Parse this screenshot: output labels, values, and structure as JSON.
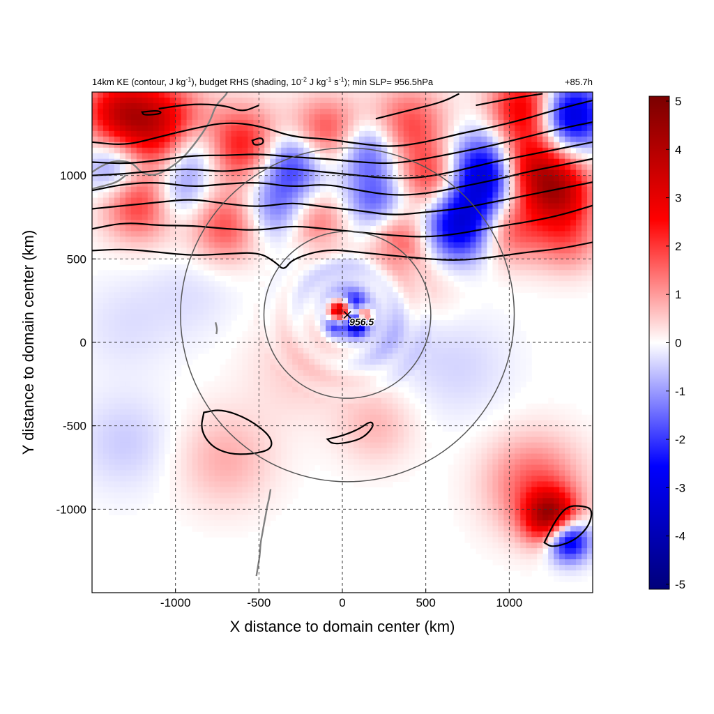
{
  "chart_data": {
    "type": "heatmap",
    "title_left_parts": [
      {
        "t": "14km KE (contour, J kg"
      },
      {
        "t": "-1",
        "sup": true
      },
      {
        "t": "), budget RHS (shading, 10"
      },
      {
        "t": "-2",
        "sup": true
      },
      {
        "t": " J kg"
      },
      {
        "t": "-1",
        "sup": true
      },
      {
        "t": " s"
      },
      {
        "t": "-1",
        "sup": true
      },
      {
        "t": "); min SLP= 956.5hPa"
      }
    ],
    "title_right": "+85.7h",
    "xlabel": "X distance to domain center (km)",
    "ylabel": "Y distance to domain center (km)",
    "xlim": [
      -1500,
      1500
    ],
    "ylim": [
      -1500,
      1500
    ],
    "xticks": [
      -1000,
      -500,
      0,
      500,
      1000
    ],
    "yticks": [
      -1000,
      -500,
      0,
      500,
      1000
    ],
    "xtick_labels": [
      "-1000",
      "-500",
      "0",
      "500",
      "1000"
    ],
    "ytick_labels": [
      "-1000",
      "-500",
      "0",
      "500",
      "1000"
    ],
    "grid": "dashed",
    "colorbar": {
      "min": -5,
      "max": 5,
      "ticks": [
        5,
        4,
        3,
        2,
        1,
        0,
        -1,
        -2,
        -3,
        -4,
        -5
      ],
      "tick_labels": [
        "5",
        "4",
        "3",
        "2",
        "1",
        "0",
        "-1",
        "-2",
        "-3",
        "-4",
        "-5"
      ],
      "colors": [
        "#00007a",
        "#0000ff",
        "#ffffff",
        "#ff0000",
        "#7a0000"
      ]
    },
    "storm_center": {
      "x": 30,
      "y": 165,
      "label": "956.5"
    },
    "range_circles_km": [
      500,
      1000
    ],
    "shading_features": [
      {
        "x": -1100,
        "y": 1300,
        "v": 3.2,
        "r": 180
      },
      {
        "x": -1350,
        "y": 1380,
        "v": 2.6,
        "r": 150
      },
      {
        "x": -900,
        "y": 1150,
        "v": -1.5,
        "r": 130
      },
      {
        "x": -600,
        "y": 1180,
        "v": 2.4,
        "r": 160
      },
      {
        "x": -300,
        "y": 1080,
        "v": -2.2,
        "r": 140
      },
      {
        "x": -100,
        "y": 1250,
        "v": 2.0,
        "r": 150
      },
      {
        "x": 150,
        "y": 1150,
        "v": -1.8,
        "r": 130
      },
      {
        "x": 400,
        "y": 1300,
        "v": 1.8,
        "r": 160
      },
      {
        "x": 550,
        "y": 980,
        "v": 2.2,
        "r": 140
      },
      {
        "x": 880,
        "y": 1000,
        "v": -4.2,
        "r": 170
      },
      {
        "x": 700,
        "y": 700,
        "v": -3.2,
        "r": 150
      },
      {
        "x": 1100,
        "y": 1050,
        "v": 3.6,
        "r": 150
      },
      {
        "x": 1300,
        "y": 900,
        "v": 3.2,
        "r": 140
      },
      {
        "x": 1360,
        "y": 1360,
        "v": -3.6,
        "r": 140
      },
      {
        "x": 1100,
        "y": 1400,
        "v": 3.0,
        "r": 150
      },
      {
        "x": -1200,
        "y": 850,
        "v": 2.4,
        "r": 160
      },
      {
        "x": -1000,
        "y": 900,
        "v": -1.6,
        "r": 140
      },
      {
        "x": -700,
        "y": 700,
        "v": 1.8,
        "r": 150
      },
      {
        "x": -400,
        "y": 800,
        "v": -1.4,
        "r": 140
      },
      {
        "x": -150,
        "y": 720,
        "v": 1.4,
        "r": 130
      },
      {
        "x": 200,
        "y": 850,
        "v": -1.6,
        "r": 130
      },
      {
        "x": 350,
        "y": 620,
        "v": 1.6,
        "r": 130
      },
      {
        "x": 1000,
        "y": 700,
        "v": 2.0,
        "r": 150
      },
      {
        "x": 1350,
        "y": 620,
        "v": 1.4,
        "r": 140
      },
      {
        "x": -1350,
        "y": 1050,
        "v": -1.8,
        "r": 130
      },
      {
        "x": -20,
        "y": 190,
        "v": 4.0,
        "r": 45
      },
      {
        "x": 80,
        "y": 110,
        "v": -4.2,
        "r": 40
      },
      {
        "x": 130,
        "y": 160,
        "v": 3.0,
        "r": 35
      },
      {
        "x": -40,
        "y": 100,
        "v": -1.8,
        "r": 40
      },
      {
        "x": 70,
        "y": 240,
        "v": -1.6,
        "r": 40
      },
      {
        "x": 0,
        "y": 300,
        "v": -0.7,
        "r": 160
      },
      {
        "x": 250,
        "y": 50,
        "v": -0.6,
        "r": 170
      },
      {
        "x": -250,
        "y": -150,
        "v": 0.5,
        "r": 220
      },
      {
        "x": -700,
        "y": -700,
        "v": 0.8,
        "r": 200
      },
      {
        "x": 200,
        "y": -500,
        "v": 0.7,
        "r": 160
      },
      {
        "x": 1250,
        "y": -1050,
        "v": 4.0,
        "r": 110
      },
      {
        "x": 1350,
        "y": -1180,
        "v": -3.8,
        "r": 90
      },
      {
        "x": 1150,
        "y": -850,
        "v": 1.6,
        "r": 200
      },
      {
        "x": -1300,
        "y": -600,
        "v": -0.5,
        "r": 200
      },
      {
        "x": -1300,
        "y": 100,
        "v": -0.3,
        "r": 200
      },
      {
        "x": 700,
        "y": -150,
        "v": -0.4,
        "r": 220
      },
      {
        "x": -900,
        "y": 300,
        "v": -0.3,
        "r": 200
      },
      {
        "x": 500,
        "y": 350,
        "v": 0.5,
        "r": 160
      }
    ],
    "ke_contours": [
      [
        [
          -1500,
          550
        ],
        [
          -1300,
          560
        ],
        [
          -1100,
          540
        ],
        [
          -900,
          520
        ],
        [
          -700,
          530
        ],
        [
          -500,
          540
        ],
        [
          -400,
          480
        ],
        [
          -350,
          430
        ],
        [
          -300,
          500
        ],
        [
          -100,
          560
        ],
        [
          100,
          540
        ],
        [
          300,
          520
        ],
        [
          500,
          500
        ],
        [
          700,
          490
        ],
        [
          900,
          510
        ],
        [
          1100,
          540
        ],
        [
          1300,
          560
        ],
        [
          1500,
          600
        ]
      ],
      [
        [
          -1500,
          680
        ],
        [
          -1300,
          720
        ],
        [
          -1100,
          700
        ],
        [
          -900,
          700
        ],
        [
          -700,
          680
        ],
        [
          -500,
          670
        ],
        [
          -300,
          700
        ],
        [
          -100,
          680
        ],
        [
          100,
          660
        ],
        [
          300,
          640
        ],
        [
          500,
          630
        ],
        [
          700,
          650
        ],
        [
          900,
          690
        ],
        [
          1100,
          720
        ],
        [
          1300,
          760
        ],
        [
          1500,
          820
        ]
      ],
      [
        [
          -1500,
          800
        ],
        [
          -1300,
          820
        ],
        [
          -1100,
          840
        ],
        [
          -900,
          860
        ],
        [
          -700,
          830
        ],
        [
          -500,
          810
        ],
        [
          -300,
          840
        ],
        [
          -100,
          810
        ],
        [
          100,
          790
        ],
        [
          300,
          760
        ],
        [
          500,
          780
        ],
        [
          700,
          800
        ],
        [
          900,
          840
        ],
        [
          1100,
          880
        ],
        [
          1300,
          920
        ],
        [
          1500,
          960
        ]
      ],
      [
        [
          -1500,
          910
        ],
        [
          -1300,
          950
        ],
        [
          -1100,
          960
        ],
        [
          -900,
          930
        ],
        [
          -700,
          950
        ],
        [
          -500,
          960
        ],
        [
          -300,
          930
        ],
        [
          -100,
          950
        ],
        [
          100,
          910
        ],
        [
          300,
          880
        ],
        [
          500,
          890
        ],
        [
          700,
          930
        ],
        [
          900,
          970
        ],
        [
          1100,
          1020
        ],
        [
          1300,
          1060
        ],
        [
          1500,
          1100
        ]
      ],
      [
        [
          -1500,
          1000
        ],
        [
          -1300,
          1010
        ],
        [
          -1100,
          1030
        ],
        [
          -900,
          1040
        ],
        [
          -700,
          1020
        ],
        [
          -500,
          1050
        ],
        [
          -300,
          1040
        ],
        [
          -100,
          1020
        ],
        [
          100,
          1000
        ],
        [
          300,
          980
        ],
        [
          500,
          990
        ],
        [
          700,
          1030
        ],
        [
          900,
          1080
        ],
        [
          1100,
          1120
        ],
        [
          1300,
          1160
        ],
        [
          1500,
          1200
        ]
      ],
      [
        [
          -1500,
          1080
        ],
        [
          -1300,
          1070
        ],
        [
          -1100,
          1090
        ],
        [
          -900,
          1120
        ],
        [
          -700,
          1120
        ],
        [
          -500,
          1130
        ],
        [
          -300,
          1110
        ],
        [
          -100,
          1100
        ],
        [
          100,
          1080
        ],
        [
          300,
          1070
        ],
        [
          500,
          1100
        ],
        [
          700,
          1140
        ],
        [
          900,
          1180
        ],
        [
          1100,
          1230
        ],
        [
          1300,
          1280
        ],
        [
          1500,
          1320
        ]
      ],
      [
        [
          -1500,
          1200
        ],
        [
          -1300,
          1180
        ],
        [
          -1100,
          1230
        ],
        [
          -900,
          1280
        ],
        [
          -700,
          1320
        ],
        [
          -500,
          1300
        ],
        [
          -300,
          1230
        ],
        [
          -100,
          1220
        ],
        [
          100,
          1190
        ],
        [
          300,
          1170
        ],
        [
          500,
          1200
        ],
        [
          700,
          1250
        ],
        [
          900,
          1290
        ],
        [
          1100,
          1340
        ],
        [
          1300,
          1400
        ],
        [
          1500,
          1450
        ]
      ],
      [
        [
          -1100,
          1400
        ],
        [
          -900,
          1430
        ],
        [
          -700,
          1420
        ],
        [
          -600,
          1380
        ],
        [
          -500,
          1420
        ]
      ],
      [
        [
          200,
          1340
        ],
        [
          400,
          1390
        ],
        [
          600,
          1440
        ],
        [
          700,
          1490
        ]
      ],
      [
        [
          800,
          1420
        ],
        [
          1000,
          1460
        ],
        [
          1200,
          1490
        ]
      ]
    ],
    "ke_closed_contours": [
      [
        [
          -830,
          -420
        ],
        [
          -720,
          -400
        ],
        [
          -560,
          -460
        ],
        [
          -430,
          -560
        ],
        [
          -420,
          -640
        ],
        [
          -540,
          -670
        ],
        [
          -680,
          -670
        ],
        [
          -790,
          -620
        ],
        [
          -850,
          -520
        ]
      ],
      [
        [
          -90,
          -580
        ],
        [
          0,
          -560
        ],
        [
          100,
          -520
        ],
        [
          170,
          -470
        ],
        [
          190,
          -500
        ],
        [
          130,
          -570
        ],
        [
          40,
          -600
        ],
        [
          -60,
          -610
        ]
      ],
      [
        [
          -1200,
          1380
        ],
        [
          -1100,
          1390
        ],
        [
          -1080,
          1370
        ],
        [
          -1190,
          1360
        ]
      ],
      [
        [
          -540,
          1210
        ],
        [
          -480,
          1230
        ],
        [
          -470,
          1190
        ],
        [
          -530,
          1180
        ]
      ],
      [
        [
          1210,
          -1200
        ],
        [
          1280,
          -1060
        ],
        [
          1350,
          -980
        ],
        [
          1440,
          -980
        ],
        [
          1500,
          -1000
        ],
        [
          1480,
          -1100
        ],
        [
          1390,
          -1190
        ],
        [
          1260,
          -1230
        ]
      ]
    ],
    "coastline": [
      [
        [
          -1500,
          1020
        ],
        [
          -1440,
          1060
        ],
        [
          -1360,
          1090
        ],
        [
          -1260,
          1080
        ],
        [
          -1200,
          1010
        ],
        [
          -1120,
          1000
        ],
        [
          -1040,
          1040
        ],
        [
          -960,
          1100
        ],
        [
          -900,
          1170
        ],
        [
          -840,
          1250
        ],
        [
          -790,
          1330
        ],
        [
          -760,
          1420
        ],
        [
          -700,
          1480
        ],
        [
          -690,
          1500
        ]
      ],
      [
        [
          -1500,
          920
        ],
        [
          -1420,
          940
        ],
        [
          -1350,
          960
        ],
        [
          -1300,
          1000
        ]
      ],
      [
        [
          -760,
          120
        ],
        [
          -750,
          80
        ],
        [
          -755,
          50
        ]
      ],
      [
        [
          -430,
          -880
        ],
        [
          -440,
          -940
        ],
        [
          -450,
          -980
        ],
        [
          -460,
          -1040
        ],
        [
          -470,
          -1090
        ],
        [
          -480,
          -1150
        ],
        [
          -490,
          -1200
        ],
        [
          -495,
          -1280
        ],
        [
          -505,
          -1340
        ],
        [
          -515,
          -1400
        ]
      ]
    ]
  }
}
